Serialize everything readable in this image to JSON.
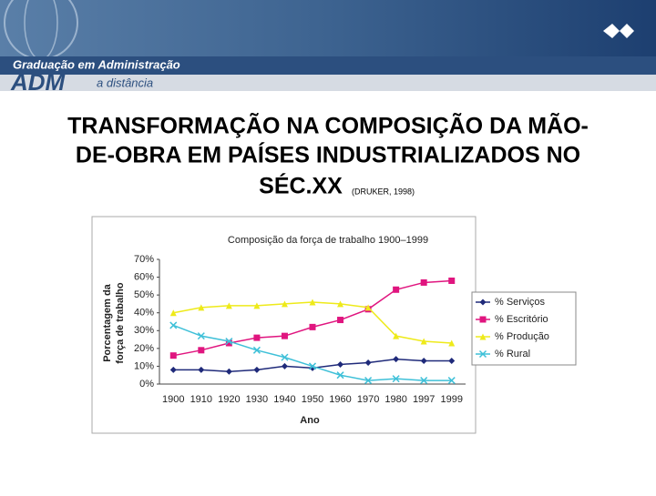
{
  "header": {
    "program": "Graduação em Administração",
    "logo": "ADM",
    "tagline": "a distância"
  },
  "slide": {
    "title_lines": [
      "TRANSFORMAÇÃO NA COMPOSIÇÃO DA MÃO-",
      "DE-OBRA EM PAÍSES INDUSTRIALIZADOS NO",
      "SÉC.XX"
    ],
    "citation": "(DRUKER, 1998)"
  },
  "chart_data": {
    "type": "line",
    "title": "Composição da força de trabalho 1900–1999",
    "xlabel": "Ano",
    "ylabel": [
      "Porcentagem da",
      "força de trabalho"
    ],
    "categories": [
      "1900",
      "1910",
      "1920",
      "1930",
      "1940",
      "1950",
      "1960",
      "1970",
      "1980",
      "1997",
      "1999"
    ],
    "series": [
      {
        "name": "% Serviços",
        "color": "#1f2a7a",
        "marker": "diamond",
        "values": [
          8,
          8,
          7,
          8,
          10,
          9,
          11,
          12,
          14,
          13,
          13
        ]
      },
      {
        "name": "% Escritório",
        "color": "#e0157f",
        "marker": "square",
        "values": [
          16,
          19,
          23,
          26,
          27,
          32,
          36,
          42,
          53,
          57,
          58
        ]
      },
      {
        "name": "% Produção",
        "color": "#eeea1a",
        "marker": "triangle",
        "values": [
          40,
          43,
          44,
          44,
          45,
          46,
          45,
          43,
          27,
          24,
          23
        ]
      },
      {
        "name": "% Rural",
        "color": "#3ec0d8",
        "marker": "x",
        "values": [
          33,
          27,
          24,
          19,
          15,
          10,
          5,
          2,
          3,
          2,
          2
        ]
      }
    ],
    "ylim": [
      0,
      70
    ],
    "yticks": [
      {
        "value": 0,
        "label": "0%"
      },
      {
        "value": 10,
        "label": "10%"
      },
      {
        "value": 20,
        "label": "20%"
      },
      {
        "value": 30,
        "label": "30%"
      },
      {
        "value": 40,
        "label": "40%"
      },
      {
        "value": 50,
        "label": "50%"
      },
      {
        "value": 60,
        "label": "60%"
      },
      {
        "value": 70,
        "label": "70%"
      }
    ],
    "grid": false
  }
}
